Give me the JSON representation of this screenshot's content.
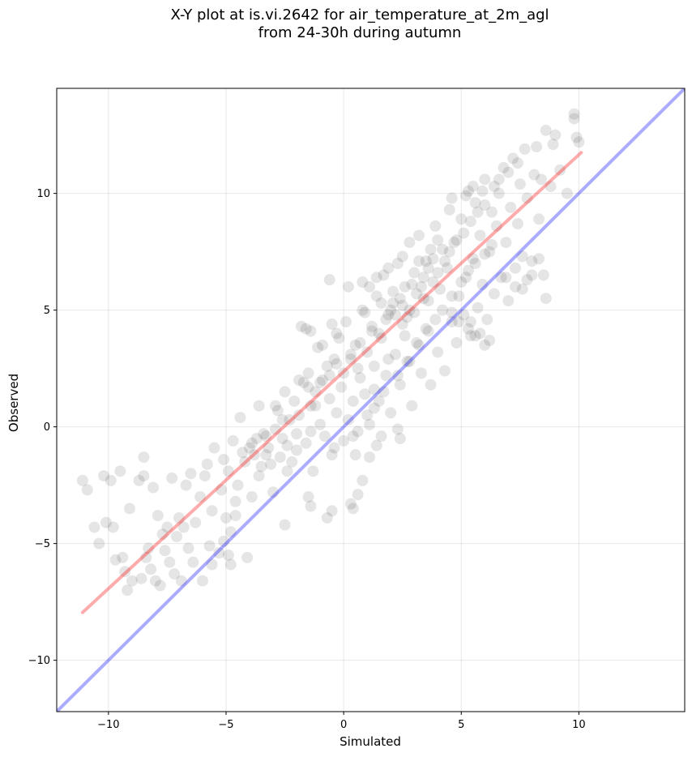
{
  "chart_data": {
    "type": "scatter",
    "title_line1": "X-Y plot at is.vi.2642 for air_temperature_at_2m_agl",
    "title_line2": "from 24-30h during autumn",
    "xlabel": "Simulated",
    "ylabel": "Observed",
    "xlim": [
      -12.2,
      14.5
    ],
    "ylim": [
      -12.2,
      14.5
    ],
    "xticks": [
      -10,
      -5,
      0,
      5,
      10
    ],
    "yticks": [
      -10,
      -5,
      0,
      5,
      10
    ],
    "xtick_labels": [
      "−10",
      "−5",
      "0",
      "5",
      "10"
    ],
    "ytick_labels": [
      "−10",
      "−5",
      "0",
      "5",
      "10"
    ],
    "grid": true,
    "point_color": "#000000",
    "point_alpha": 0.1,
    "identity_line": {
      "color": "#0000ff",
      "alpha": 0.33,
      "x": [
        -12.2,
        14.5
      ],
      "y": [
        -12.2,
        14.5
      ]
    },
    "regression_line": {
      "color": "#ff0000",
      "alpha": 0.33,
      "x": [
        -11.1,
        10.1
      ],
      "y": [
        -7.95,
        11.75
      ]
    },
    "points": [
      [
        -11.1,
        -2.3
      ],
      [
        -10.9,
        -2.7
      ],
      [
        -10.6,
        -4.3
      ],
      [
        -10.4,
        -5.0
      ],
      [
        -10.2,
        -2.1
      ],
      [
        -10.1,
        -4.1
      ],
      [
        -9.9,
        -2.3
      ],
      [
        -9.8,
        -4.3
      ],
      [
        -9.7,
        -5.7
      ],
      [
        -9.5,
        -1.9
      ],
      [
        -9.4,
        -5.6
      ],
      [
        -9.3,
        -6.2
      ],
      [
        -9.2,
        -7.0
      ],
      [
        -9.1,
        -3.5
      ],
      [
        -9.0,
        -6.6
      ],
      [
        -8.7,
        -2.3
      ],
      [
        -8.6,
        -6.5
      ],
      [
        -8.5,
        -1.3
      ],
      [
        -8.5,
        -2.1
      ],
      [
        -8.4,
        -5.6
      ],
      [
        -8.3,
        -5.2
      ],
      [
        -8.2,
        -6.1
      ],
      [
        -8.1,
        -2.6
      ],
      [
        -8.0,
        -6.6
      ],
      [
        -7.9,
        -3.8
      ],
      [
        -7.8,
        -6.8
      ],
      [
        -7.7,
        -4.6
      ],
      [
        -7.6,
        -5.3
      ],
      [
        -7.5,
        -4.3
      ],
      [
        -7.4,
        -5.8
      ],
      [
        -7.3,
        -2.2
      ],
      [
        -7.2,
        -6.3
      ],
      [
        -7.1,
        -4.7
      ],
      [
        -7.0,
        -3.9
      ],
      [
        -6.9,
        -6.6
      ],
      [
        -6.8,
        -4.3
      ],
      [
        -6.7,
        -2.5
      ],
      [
        -6.6,
        -5.2
      ],
      [
        -6.5,
        -2.0
      ],
      [
        -6.4,
        -5.8
      ],
      [
        -6.3,
        -4.1
      ],
      [
        -6.1,
        -3.0
      ],
      [
        -6.0,
        -6.6
      ],
      [
        -5.9,
        -2.1
      ],
      [
        -5.8,
        -1.6
      ],
      [
        -5.7,
        -5.1
      ],
      [
        -5.6,
        -3.6
      ],
      [
        -5.5,
        -0.9
      ],
      [
        -5.3,
        -5.4
      ],
      [
        -5.2,
        -2.7
      ],
      [
        -5.1,
        -1.4
      ],
      [
        -4.9,
        -1.9
      ],
      [
        -4.8,
        -4.5
      ],
      [
        -4.7,
        -0.6
      ],
      [
        -4.6,
        -3.8
      ],
      [
        -4.5,
        -2.5
      ],
      [
        -4.4,
        0.4
      ],
      [
        -4.2,
        -1.5
      ],
      [
        -4.1,
        -5.6
      ],
      [
        -4.0,
        -0.9
      ],
      [
        -3.9,
        -3.0
      ],
      [
        -3.8,
        -1.2
      ],
      [
        -3.7,
        -0.5
      ],
      [
        -3.6,
        0.9
      ],
      [
        -3.5,
        -1.7
      ],
      [
        -3.3,
        -0.4
      ],
      [
        -3.2,
        -0.9
      ],
      [
        -3.0,
        -2.8
      ],
      [
        -2.9,
        -0.1
      ],
      [
        -2.8,
        0.7
      ],
      [
        -2.7,
        -1.3
      ],
      [
        -2.6,
        -0.5
      ],
      [
        -2.5,
        1.5
      ],
      [
        -2.4,
        -0.8
      ],
      [
        -2.3,
        0.3
      ],
      [
        -2.2,
        -1.5
      ],
      [
        -2.1,
        1.1
      ],
      [
        -2.0,
        -0.3
      ],
      [
        -1.9,
        0.5
      ],
      [
        -1.8,
        4.3
      ],
      [
        -1.7,
        1.9
      ],
      [
        -1.6,
        -0.7
      ],
      [
        -1.5,
        2.3
      ],
      [
        -1.4,
        0.9
      ],
      [
        -1.3,
        -1.9
      ],
      [
        -1.2,
        1.5
      ],
      [
        -1.1,
        3.4
      ],
      [
        -1.0,
        0.1
      ],
      [
        -0.9,
        2.0
      ],
      [
        -0.8,
        -0.4
      ],
      [
        -0.7,
        2.6
      ],
      [
        -0.6,
        1.2
      ],
      [
        -0.5,
        -1.2
      ],
      [
        -0.4,
        2.9
      ],
      [
        -0.3,
        0.6
      ],
      [
        -0.2,
        3.8
      ],
      [
        -0.1,
        1.7
      ],
      [
        0.0,
        -0.6
      ],
      [
        0.0,
        2.3
      ],
      [
        0.1,
        4.5
      ],
      [
        0.2,
        0.3
      ],
      [
        0.3,
        2.9
      ],
      [
        0.4,
        1.1
      ],
      [
        0.5,
        3.5
      ],
      [
        0.6,
        -0.2
      ],
      [
        0.7,
        2.1
      ],
      [
        0.8,
        5.0
      ],
      [
        0.9,
        1.4
      ],
      [
        1.0,
        3.2
      ],
      [
        1.1,
        0.1
      ],
      [
        1.2,
        4.1
      ],
      [
        1.3,
        2.6
      ],
      [
        1.4,
        5.6
      ],
      [
        1.5,
        1.1
      ],
      [
        1.6,
        3.8
      ],
      [
        1.7,
        6.5
      ],
      [
        1.8,
        2.2
      ],
      [
        1.9,
        4.8
      ],
      [
        2.0,
        0.6
      ],
      [
        2.1,
        5.3
      ],
      [
        2.2,
        3.1
      ],
      [
        2.3,
        7.0
      ],
      [
        2.4,
        1.8
      ],
      [
        2.5,
        4.4
      ],
      [
        2.6,
        6.0
      ],
      [
        2.7,
        2.8
      ],
      [
        2.8,
        5.0
      ],
      [
        2.9,
        0.9
      ],
      [
        3.0,
        6.6
      ],
      [
        3.1,
        3.6
      ],
      [
        3.2,
        8.2
      ],
      [
        3.3,
        2.3
      ],
      [
        3.4,
        5.5
      ],
      [
        3.5,
        7.1
      ],
      [
        3.6,
        4.1
      ],
      [
        3.7,
        1.8
      ],
      [
        3.8,
        6.2
      ],
      [
        3.9,
        8.6
      ],
      [
        4.0,
        3.2
      ],
      [
        4.1,
        5.9
      ],
      [
        4.2,
        7.6
      ],
      [
        4.3,
        2.4
      ],
      [
        4.4,
        6.8
      ],
      [
        4.5,
        9.3
      ],
      [
        4.6,
        4.5
      ],
      [
        4.7,
        7.9
      ],
      [
        4.8,
        3.6
      ],
      [
        4.9,
        5.6
      ],
      [
        5.0,
        8.9
      ],
      [
        5.1,
        4.8
      ],
      [
        5.2,
        6.4
      ],
      [
        5.3,
        10.1
      ],
      [
        5.4,
        3.9
      ],
      [
        5.5,
        7.2
      ],
      [
        5.6,
        9.6
      ],
      [
        5.7,
        5.1
      ],
      [
        5.8,
        8.2
      ],
      [
        5.9,
        6.1
      ],
      [
        6.0,
        10.6
      ],
      [
        6.1,
        4.6
      ],
      [
        6.2,
        7.5
      ],
      [
        6.3,
        9.2
      ],
      [
        6.4,
        5.7
      ],
      [
        6.5,
        8.6
      ],
      [
        6.6,
        10.0
      ],
      [
        6.7,
        6.4
      ],
      [
        6.8,
        11.1
      ],
      [
        6.9,
        7.9
      ],
      [
        7.0,
        5.4
      ],
      [
        7.1,
        9.4
      ],
      [
        7.2,
        11.5
      ],
      [
        7.3,
        6.8
      ],
      [
        7.4,
        8.7
      ],
      [
        7.5,
        10.4
      ],
      [
        7.6,
        7.3
      ],
      [
        7.7,
        11.9
      ],
      [
        7.8,
        9.8
      ],
      [
        8.0,
        6.5
      ],
      [
        8.1,
        10.8
      ],
      [
        8.2,
        12.0
      ],
      [
        8.3,
        8.9
      ],
      [
        8.4,
        10.6
      ],
      [
        8.6,
        12.7
      ],
      [
        8.8,
        10.3
      ],
      [
        9.0,
        12.5
      ],
      [
        9.2,
        11.0
      ],
      [
        9.5,
        10.0
      ],
      [
        9.8,
        13.2
      ],
      [
        9.9,
        12.4
      ],
      [
        10.0,
        12.2
      ],
      [
        9.8,
        13.4
      ],
      [
        8.9,
        12.1
      ],
      [
        1.0,
        0.5
      ],
      [
        1.3,
        1.6
      ],
      [
        1.9,
        2.9
      ],
      [
        2.2,
        4.8
      ],
      [
        2.5,
        5.2
      ],
      [
        2.0,
        5.0
      ],
      [
        1.8,
        4.6
      ],
      [
        2.4,
        5.5
      ],
      [
        2.7,
        4.7
      ],
      [
        2.1,
        5.8
      ],
      [
        1.6,
        5.3
      ],
      [
        2.9,
        6.1
      ],
      [
        3.1,
        5.7
      ],
      [
        3.4,
        6.4
      ],
      [
        3.6,
        6.8
      ],
      [
        3.8,
        7.2
      ],
      [
        1.2,
        4.3
      ],
      [
        0.7,
        3.6
      ],
      [
        0.9,
        4.9
      ],
      [
        1.5,
        4.0
      ],
      [
        2.6,
        3.9
      ],
      [
        3.0,
        4.9
      ],
      [
        3.3,
        6.0
      ],
      [
        3.6,
        5.4
      ],
      [
        4.0,
        6.6
      ],
      [
        4.3,
        7.1
      ],
      [
        4.5,
        7.5
      ],
      [
        4.8,
        8.0
      ],
      [
        5.1,
        8.3
      ],
      [
        5.4,
        8.8
      ],
      [
        5.7,
        9.2
      ],
      [
        6.0,
        9.5
      ],
      [
        -1.9,
        2.0
      ],
      [
        -1.5,
        1.7
      ],
      [
        -1.0,
        1.9
      ],
      [
        -0.6,
        2.2
      ],
      [
        -0.3,
        2.7
      ],
      [
        0.3,
        3.1
      ],
      [
        0.6,
        2.5
      ],
      [
        -1.2,
        0.9
      ],
      [
        -2.6,
        0.3
      ],
      [
        -2.9,
        0.9
      ],
      [
        -3.4,
        -0.3
      ],
      [
        -3.9,
        -0.7
      ],
      [
        -4.3,
        -1.1
      ],
      [
        -3.1,
        -1.6
      ],
      [
        -2.0,
        -1.0
      ],
      [
        -1.4,
        -0.2
      ],
      [
        -0.4,
        -0.9
      ],
      [
        0.4,
        -0.4
      ],
      [
        1.3,
        0.8
      ],
      [
        1.7,
        1.5
      ],
      [
        2.3,
        2.2
      ],
      [
        2.8,
        2.8
      ],
      [
        3.2,
        3.5
      ],
      [
        3.5,
        4.2
      ],
      [
        3.9,
        4.6
      ],
      [
        4.2,
        5.0
      ],
      [
        4.6,
        5.6
      ],
      [
        5.0,
        6.2
      ],
      [
        5.3,
        6.7
      ],
      [
        5.6,
        7.0
      ],
      [
        6.0,
        7.4
      ],
      [
        6.3,
        7.8
      ],
      [
        0.8,
        6.2
      ],
      [
        -0.6,
        6.3
      ],
      [
        0.2,
        6.0
      ],
      [
        -0.3,
        4.0
      ],
      [
        -1.6,
        4.2
      ],
      [
        -1.4,
        4.1
      ],
      [
        -0.9,
        3.5
      ],
      [
        -0.5,
        4.4
      ],
      [
        1.1,
        -1.3
      ],
      [
        1.6,
        -0.4
      ],
      [
        2.4,
        -0.5
      ],
      [
        2.3,
        -0.1
      ],
      [
        1.4,
        -0.8
      ],
      [
        0.5,
        -1.2
      ],
      [
        0.3,
        -3.3
      ],
      [
        0.8,
        -2.3
      ],
      [
        0.6,
        -2.9
      ],
      [
        0.4,
        -3.5
      ],
      [
        -0.5,
        -3.6
      ],
      [
        -0.7,
        -3.9
      ],
      [
        -1.4,
        -3.4
      ],
      [
        -1.5,
        -3.0
      ],
      [
        -2.4,
        -1.9
      ],
      [
        -2.5,
        -4.2
      ],
      [
        -4.9,
        -5.5
      ],
      [
        -4.8,
        -5.9
      ],
      [
        -5.1,
        -4.9
      ],
      [
        -5.6,
        -5.9
      ],
      [
        -5.0,
        -3.9
      ],
      [
        -4.6,
        -3.2
      ],
      [
        -3.6,
        -2.1
      ],
      [
        -3.3,
        -1.2
      ],
      [
        4.6,
        9.8
      ],
      [
        5.2,
        9.9
      ],
      [
        5.5,
        10.3
      ],
      [
        5.9,
        10.1
      ],
      [
        6.4,
        10.3
      ],
      [
        6.6,
        10.6
      ],
      [
        7.0,
        10.9
      ],
      [
        7.4,
        11.3
      ],
      [
        6.9,
        6.4
      ],
      [
        7.3,
        6.0
      ],
      [
        7.6,
        5.9
      ],
      [
        7.8,
        6.3
      ],
      [
        8.0,
        7.1
      ],
      [
        8.3,
        7.2
      ],
      [
        8.5,
        6.5
      ],
      [
        8.6,
        5.5
      ],
      [
        5.4,
        4.5
      ],
      [
        5.8,
        4.0
      ],
      [
        6.2,
        3.7
      ],
      [
        6.0,
        3.5
      ],
      [
        5.6,
        3.9
      ],
      [
        5.3,
        4.2
      ],
      [
        4.9,
        4.5
      ],
      [
        4.6,
        4.9
      ],
      [
        2.5,
        7.3
      ],
      [
        2.8,
        7.9
      ],
      [
        3.2,
        7.1
      ],
      [
        3.7,
        7.6
      ],
      [
        4.0,
        8.0
      ],
      [
        1.9,
        6.8
      ],
      [
        1.4,
        6.4
      ],
      [
        1.1,
        6.0
      ]
    ]
  }
}
